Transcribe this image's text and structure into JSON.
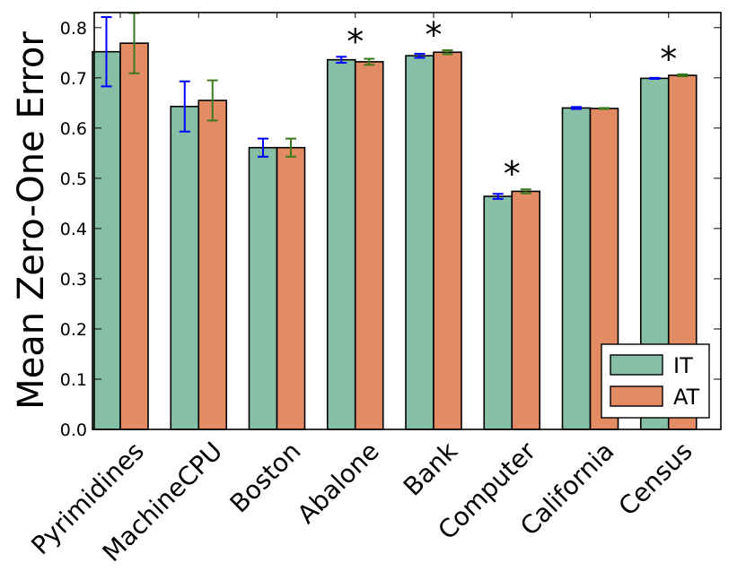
{
  "chart_data": {
    "type": "bar",
    "title": "",
    "xlabel": "",
    "ylabel": "Mean Zero-One Error",
    "ylim": [
      0,
      0.83
    ],
    "yticks": [
      "0.0",
      "0.1",
      "0.2",
      "0.3",
      "0.4",
      "0.5",
      "0.6",
      "0.7",
      "0.8"
    ],
    "categories": [
      "Pyrimidines",
      "MachineCPU",
      "Boston",
      "Abalone",
      "Bank",
      "Computer",
      "California",
      "Census"
    ],
    "series": [
      {
        "name": "IT",
        "color": "#86bfa5",
        "error_color": "#0000ff",
        "values": [
          0.752,
          0.643,
          0.561,
          0.736,
          0.744,
          0.464,
          0.64,
          0.699
        ],
        "errors": [
          0.069,
          0.05,
          0.018,
          0.006,
          0.004,
          0.005,
          0.002,
          0.001
        ]
      },
      {
        "name": "AT",
        "color": "#e38b63",
        "error_color": "#3d7a1e",
        "values": [
          0.769,
          0.655,
          0.561,
          0.732,
          0.751,
          0.474,
          0.639,
          0.705
        ],
        "errors": [
          0.06,
          0.04,
          0.018,
          0.006,
          0.004,
          0.004,
          0.001,
          0.002
        ]
      }
    ],
    "significance_marker": "*",
    "significant_categories": [
      "Abalone",
      "Bank",
      "Computer",
      "Census"
    ],
    "legend": {
      "placement": "lower-right",
      "entries": [
        "IT",
        "AT"
      ]
    },
    "grid": false
  }
}
